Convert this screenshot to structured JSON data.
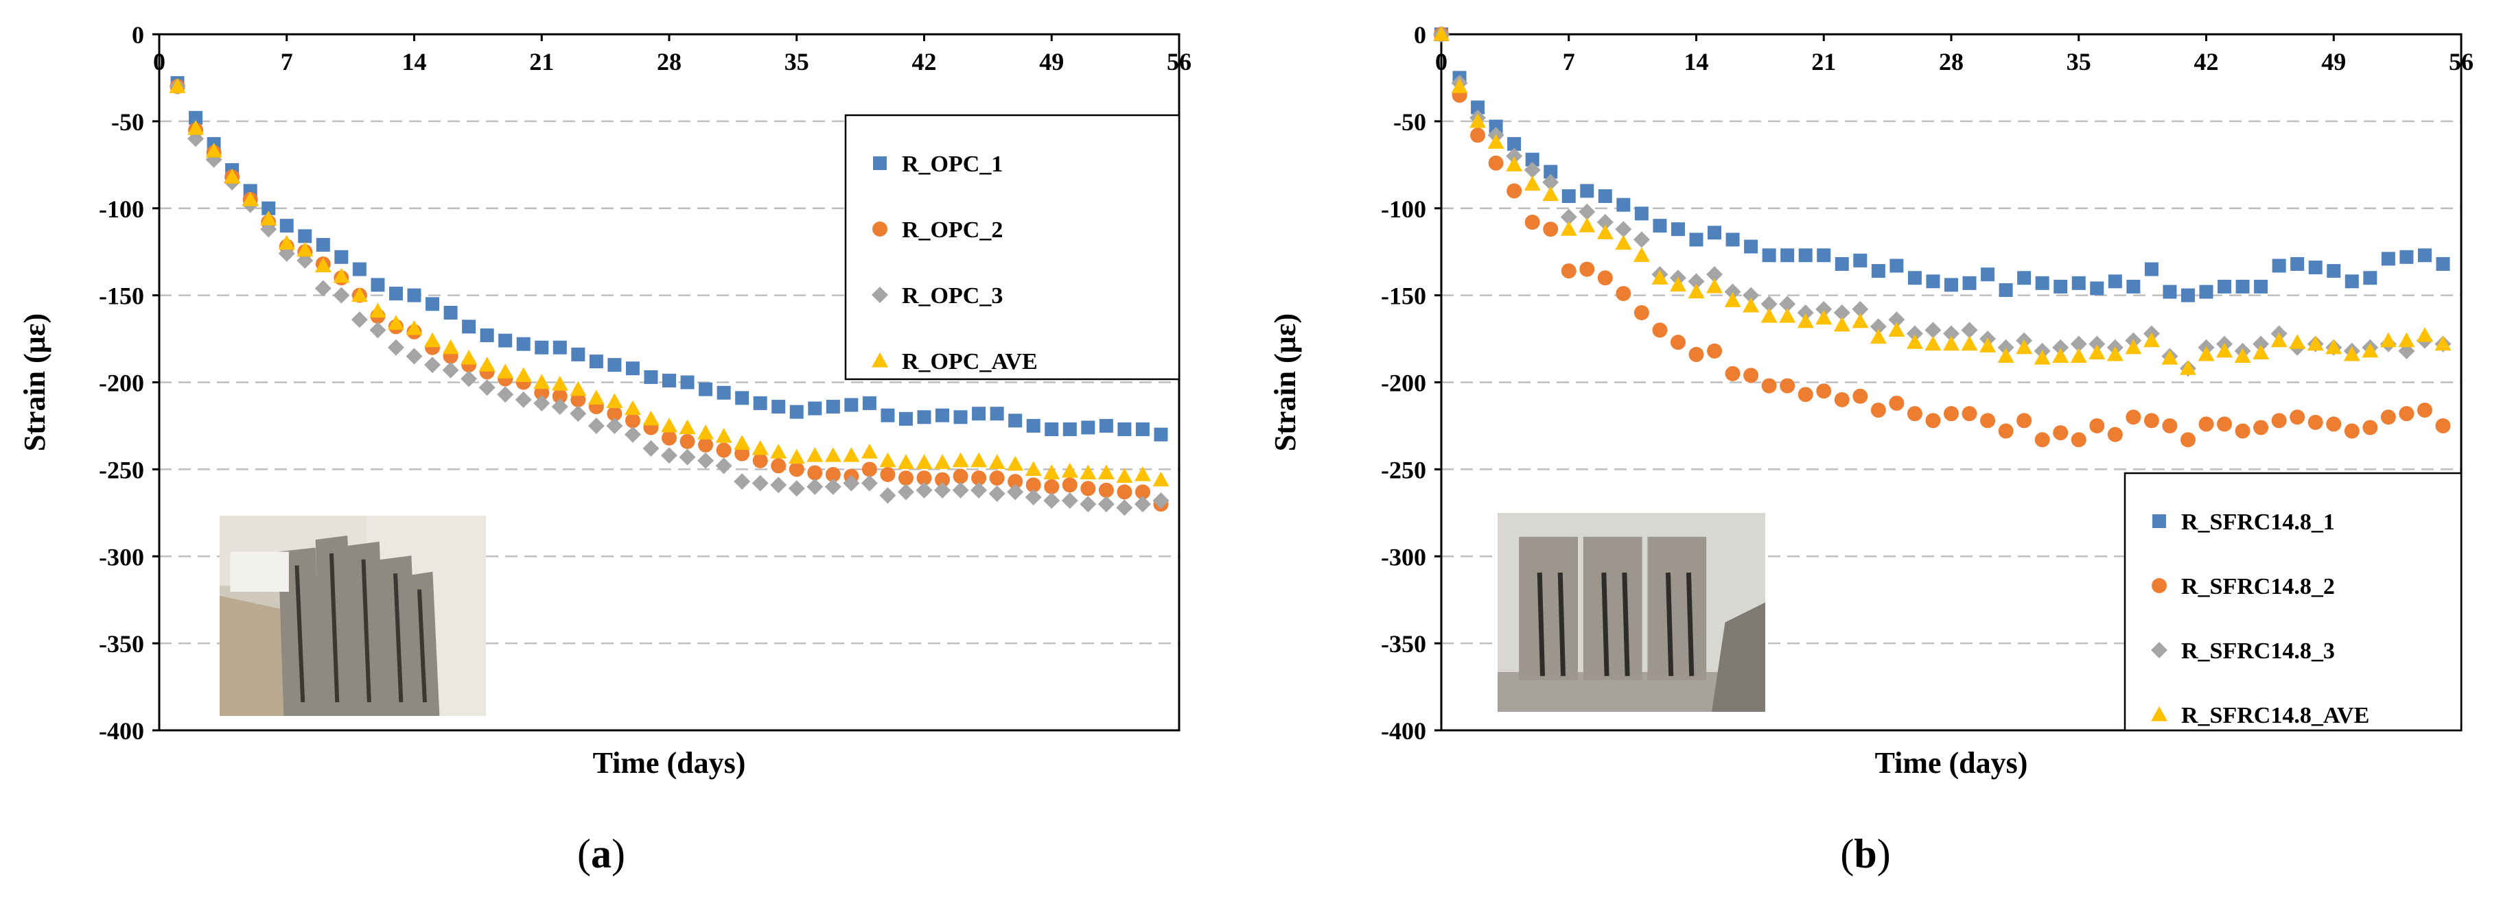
{
  "chart_data": [
    {
      "type": "scatter",
      "panel_label": "a",
      "xlabel": "Time (days)",
      "ylabel": "Strain (με)",
      "xlim": [
        0,
        56
      ],
      "ylim": [
        -400,
        0
      ],
      "xticks": [
        0,
        7,
        14,
        21,
        28,
        35,
        42,
        49,
        56
      ],
      "yticks": [
        0,
        -50,
        -100,
        -150,
        -200,
        -250,
        -300,
        -350,
        -400
      ],
      "grid": "horizontal dashed",
      "legend_position": "top-right",
      "photo": "specimen-photo",
      "series": [
        {
          "name": "R_OPC_1",
          "marker": "square",
          "color": "#4F81BD",
          "x": [
            1,
            2,
            3,
            4,
            5,
            6,
            7,
            8,
            9,
            10,
            11,
            12,
            13,
            14,
            15,
            16,
            17,
            18,
            19,
            20,
            21,
            22,
            23,
            24,
            25,
            26,
            27,
            28,
            29,
            30,
            31,
            32,
            33,
            34,
            35,
            36,
            37,
            38,
            39,
            40,
            41,
            42,
            43,
            44,
            45,
            46,
            47,
            48,
            49,
            50,
            51,
            52,
            53,
            54,
            55
          ],
          "y": [
            -28,
            -48,
            -63,
            -78,
            -90,
            -100,
            -110,
            -116,
            -121,
            -128,
            -135,
            -144,
            -149,
            -150,
            -155,
            -160,
            -168,
            -173,
            -176,
            -178,
            -180,
            -180,
            -184,
            -188,
            -190,
            -192,
            -197,
            -199,
            -200,
            -204,
            -206,
            -209,
            -212,
            -214,
            -217,
            -215,
            -214,
            -213,
            -212,
            -219,
            -221,
            -220,
            -219,
            -220,
            -218,
            -218,
            -222,
            -225,
            -227,
            -227,
            -226,
            -225,
            -227,
            -227,
            -230
          ]
        },
        {
          "name": "R_OPC_2",
          "marker": "circle",
          "color": "#ED7D31",
          "x": [
            1,
            2,
            3,
            4,
            5,
            6,
            7,
            8,
            9,
            10,
            11,
            12,
            13,
            14,
            15,
            16,
            17,
            18,
            19,
            20,
            21,
            22,
            23,
            24,
            25,
            26,
            27,
            28,
            29,
            30,
            31,
            32,
            33,
            34,
            35,
            36,
            37,
            38,
            39,
            40,
            41,
            42,
            43,
            44,
            45,
            46,
            47,
            48,
            49,
            50,
            51,
            52,
            53,
            54,
            55
          ],
          "y": [
            -30,
            -55,
            -68,
            -82,
            -95,
            -108,
            -122,
            -125,
            -132,
            -140,
            -150,
            -162,
            -168,
            -171,
            -180,
            -185,
            -190,
            -194,
            -198,
            -200,
            -206,
            -208,
            -210,
            -214,
            -218,
            -222,
            -226,
            -232,
            -234,
            -236,
            -239,
            -241,
            -245,
            -248,
            -250,
            -252,
            -253,
            -254,
            -250,
            -253,
            -255,
            -255,
            -256,
            -254,
            -255,
            -255,
            -257,
            -259,
            -260,
            -259,
            -261,
            -262,
            -263,
            -263,
            -270
          ]
        },
        {
          "name": "R_OPC_3",
          "marker": "diamond",
          "color": "#A5A5A5",
          "x": [
            1,
            2,
            3,
            4,
            5,
            6,
            7,
            8,
            9,
            10,
            11,
            12,
            13,
            14,
            15,
            16,
            17,
            18,
            19,
            20,
            21,
            22,
            23,
            24,
            25,
            26,
            27,
            28,
            29,
            30,
            31,
            32,
            33,
            34,
            35,
            36,
            37,
            38,
            39,
            40,
            41,
            42,
            43,
            44,
            45,
            46,
            47,
            48,
            49,
            50,
            51,
            52,
            53,
            54,
            55
          ],
          "y": [
            -30,
            -60,
            -72,
            -85,
            -98,
            -112,
            -126,
            -130,
            -146,
            -150,
            -164,
            -170,
            -180,
            -185,
            -190,
            -193,
            -198,
            -203,
            -207,
            -210,
            -212,
            -214,
            -218,
            -225,
            -225,
            -230,
            -238,
            -242,
            -243,
            -245,
            -248,
            -257,
            -258,
            -259,
            -261,
            -260,
            -260,
            -258,
            -258,
            -265,
            -263,
            -262,
            -262,
            -262,
            -262,
            -264,
            -263,
            -266,
            -268,
            -268,
            -270,
            -270,
            -272,
            -270,
            -268
          ]
        },
        {
          "name": "R_OPC_AVE",
          "marker": "triangle",
          "color": "#FFC000",
          "x": [
            1,
            2,
            3,
            4,
            5,
            6,
            7,
            8,
            9,
            10,
            11,
            12,
            13,
            14,
            15,
            16,
            17,
            18,
            19,
            20,
            21,
            22,
            23,
            24,
            25,
            26,
            27,
            28,
            29,
            30,
            31,
            32,
            33,
            34,
            35,
            36,
            37,
            38,
            39,
            40,
            41,
            42,
            43,
            44,
            45,
            46,
            47,
            48,
            49,
            50,
            51,
            52,
            53,
            54,
            55
          ],
          "y": [
            -30,
            -54,
            -67,
            -82,
            -95,
            -106,
            -120,
            -124,
            -133,
            -139,
            -150,
            -159,
            -166,
            -169,
            -176,
            -180,
            -186,
            -190,
            -194,
            -196,
            -200,
            -201,
            -204,
            -209,
            -211,
            -215,
            -221,
            -225,
            -226,
            -229,
            -231,
            -235,
            -238,
            -240,
            -243,
            -242,
            -242,
            -242,
            -240,
            -245,
            -246,
            -246,
            -246,
            -245,
            -245,
            -246,
            -247,
            -250,
            -252,
            -251,
            -252,
            -252,
            -254,
            -253,
            -256
          ]
        }
      ]
    },
    {
      "type": "scatter",
      "panel_label": "b",
      "xlabel": "Time (days)",
      "ylabel": "Strain (με)",
      "xlim": [
        0,
        56
      ],
      "ylim": [
        -400,
        0
      ],
      "xticks": [
        0,
        7,
        14,
        21,
        28,
        35,
        42,
        49,
        56
      ],
      "yticks": [
        0,
        -50,
        -100,
        -150,
        -200,
        -250,
        -300,
        -350,
        -400
      ],
      "grid": "horizontal dashed",
      "legend_position": "bottom-right",
      "photo": "specimen-photo",
      "series": [
        {
          "name": "R_SFRC14.8_1",
          "marker": "square",
          "color": "#4F81BD",
          "x": [
            0,
            1,
            2,
            3,
            4,
            5,
            6,
            7,
            8,
            9,
            10,
            11,
            12,
            13,
            14,
            15,
            16,
            17,
            18,
            19,
            20,
            21,
            22,
            23,
            24,
            25,
            26,
            27,
            28,
            29,
            30,
            31,
            32,
            33,
            34,
            35,
            36,
            37,
            38,
            39,
            40,
            41,
            42,
            43,
            44,
            45,
            46,
            47,
            48,
            49,
            50,
            51,
            52,
            53,
            54,
            55
          ],
          "y": [
            0,
            -25,
            -42,
            -53,
            -63,
            -72,
            -79,
            -93,
            -90,
            -93,
            -98,
            -103,
            -110,
            -112,
            -118,
            -114,
            -118,
            -122,
            -127,
            -127,
            -127,
            -127,
            -132,
            -130,
            -136,
            -133,
            -140,
            -142,
            -144,
            -143,
            -138,
            -147,
            -140,
            -143,
            -145,
            -143,
            -146,
            -142,
            -145,
            -135,
            -148,
            -150,
            -148,
            -145,
            -145,
            -145,
            -133,
            -132,
            -134,
            -136,
            -142,
            -140,
            -129,
            -128,
            -127,
            -132
          ]
        },
        {
          "name": "R_SFRC14.8_2",
          "marker": "circle",
          "color": "#ED7D31",
          "x": [
            0,
            1,
            2,
            3,
            4,
            5,
            6,
            7,
            8,
            9,
            10,
            11,
            12,
            13,
            14,
            15,
            16,
            17,
            18,
            19,
            20,
            21,
            22,
            23,
            24,
            25,
            26,
            27,
            28,
            29,
            30,
            31,
            32,
            33,
            34,
            35,
            36,
            37,
            38,
            39,
            40,
            41,
            42,
            43,
            44,
            45,
            46,
            47,
            48,
            49,
            50,
            51,
            52,
            53,
            54,
            55
          ],
          "y": [
            0,
            -35,
            -58,
            -74,
            -90,
            -108,
            -112,
            -136,
            -135,
            -140,
            -149,
            -160,
            -170,
            -177,
            -184,
            -182,
            -195,
            -196,
            -202,
            -202,
            -207,
            -205,
            -210,
            -208,
            -216,
            -212,
            -218,
            -222,
            -218,
            -218,
            -222,
            -228,
            -222,
            -233,
            -229,
            -233,
            -225,
            -230,
            -220,
            -222,
            -225,
            -233,
            -224,
            -224,
            -228,
            -226,
            -222,
            -220,
            -223,
            -224,
            -228,
            -226,
            -220,
            -218,
            -216,
            -225
          ]
        },
        {
          "name": "R_SFRC14.8_3",
          "marker": "diamond",
          "color": "#A5A5A5",
          "x": [
            0,
            1,
            2,
            3,
            4,
            5,
            6,
            7,
            8,
            9,
            10,
            11,
            12,
            13,
            14,
            15,
            16,
            17,
            18,
            19,
            20,
            21,
            22,
            23,
            24,
            25,
            26,
            27,
            28,
            29,
            30,
            31,
            32,
            33,
            34,
            35,
            36,
            37,
            38,
            39,
            40,
            41,
            42,
            43,
            44,
            45,
            46,
            47,
            48,
            49,
            50,
            51,
            52,
            53,
            54,
            55
          ],
          "y": [
            0,
            -28,
            -48,
            -58,
            -70,
            -78,
            -85,
            -105,
            -102,
            -108,
            -112,
            -118,
            -138,
            -140,
            -142,
            -138,
            -148,
            -150,
            -155,
            -155,
            -160,
            -158,
            -160,
            -158,
            -168,
            -164,
            -172,
            -170,
            -172,
            -170,
            -175,
            -180,
            -176,
            -182,
            -180,
            -178,
            -178,
            -180,
            -176,
            -172,
            -185,
            -192,
            -180,
            -178,
            -182,
            -178,
            -172,
            -180,
            -178,
            -180,
            -182,
            -180,
            -178,
            -182,
            -176,
            -178
          ]
        },
        {
          "name": "R_SFRC14.8_AVE",
          "marker": "triangle",
          "color": "#FFC000",
          "x": [
            0,
            1,
            2,
            3,
            4,
            5,
            6,
            7,
            8,
            9,
            10,
            11,
            12,
            13,
            14,
            15,
            16,
            17,
            18,
            19,
            20,
            21,
            22,
            23,
            24,
            25,
            26,
            27,
            28,
            29,
            30,
            31,
            32,
            33,
            34,
            35,
            36,
            37,
            38,
            39,
            40,
            41,
            42,
            43,
            44,
            45,
            46,
            47,
            48,
            49,
            50,
            51,
            52,
            53,
            54,
            55
          ],
          "y": [
            0,
            -30,
            -50,
            -62,
            -75,
            -86,
            -92,
            -112,
            -110,
            -114,
            -120,
            -127,
            -140,
            -144,
            -148,
            -145,
            -153,
            -156,
            -162,
            -162,
            -165,
            -163,
            -167,
            -165,
            -174,
            -170,
            -177,
            -178,
            -178,
            -178,
            -179,
            -185,
            -180,
            -186,
            -185,
            -185,
            -183,
            -184,
            -180,
            -176,
            -186,
            -192,
            -184,
            -182,
            -185,
            -183,
            -176,
            -177,
            -178,
            -180,
            -184,
            -182,
            -176,
            -176,
            -173,
            -178
          ]
        }
      ]
    }
  ]
}
